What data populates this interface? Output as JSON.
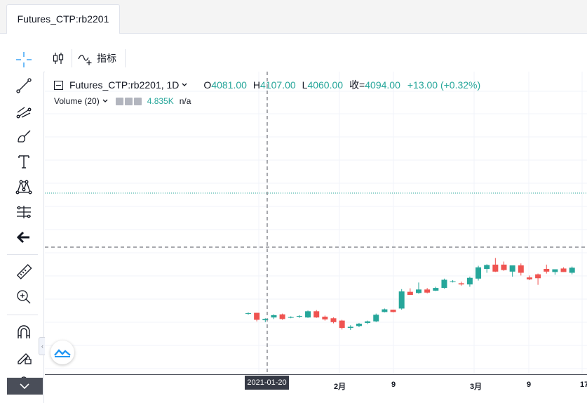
{
  "tab": {
    "title": "Futures_CTP:rb2201"
  },
  "topbar": {
    "indicators_label": "指标"
  },
  "legend": {
    "symbol": "Futures_CTP:rb2201",
    "interval": "1D",
    "open_prefix": "O",
    "open": "4081.00",
    "high_prefix": "H",
    "high": "4107.00",
    "low_prefix": "L",
    "low": "4060.00",
    "close_prefix": "收=",
    "close": "4094.00",
    "change": "+13.00 (+0.32%)"
  },
  "volume": {
    "label": "Volume (20)",
    "value": "4.835K",
    "na": "n/a"
  },
  "xaxis": {
    "crosshair_date": "2021-01-20",
    "labels": [
      "2月",
      "9",
      "3月",
      "9",
      "17"
    ]
  },
  "colors": {
    "up": "#26a69a",
    "down": "#ef5350",
    "crosshair": "#50535e",
    "price_line": "#26a69a"
  },
  "chart_data": {
    "type": "candlestick",
    "price_ylim": [
      3980,
      4260
    ],
    "candles": [
      {
        "o": 4080,
        "h": 4083,
        "l": 4077,
        "c": 4081
      },
      {
        "o": 4082,
        "h": 4082,
        "l": 4060,
        "c": 4064
      },
      {
        "o": 4063,
        "h": 4068,
        "l": 4058,
        "c": 4066
      },
      {
        "o": 4070,
        "h": 4078,
        "l": 4066,
        "c": 4076
      },
      {
        "o": 4078,
        "h": 4080,
        "l": 4064,
        "c": 4066
      },
      {
        "o": 4070,
        "h": 4073,
        "l": 4068,
        "c": 4071
      },
      {
        "o": 4072,
        "h": 4076,
        "l": 4069,
        "c": 4074
      },
      {
        "o": 4070,
        "h": 4088,
        "l": 4069,
        "c": 4086
      },
      {
        "o": 4086,
        "h": 4089,
        "l": 4069,
        "c": 4070
      },
      {
        "o": 4072,
        "h": 4075,
        "l": 4062,
        "c": 4065
      },
      {
        "o": 4068,
        "h": 4070,
        "l": 4055,
        "c": 4058
      },
      {
        "o": 4062,
        "h": 4064,
        "l": 4039,
        "c": 4043
      },
      {
        "o": 4043,
        "h": 4050,
        "l": 4038,
        "c": 4046
      },
      {
        "o": 4048,
        "h": 4056,
        "l": 4045,
        "c": 4054
      },
      {
        "o": 4056,
        "h": 4062,
        "l": 4053,
        "c": 4060
      },
      {
        "o": 4060,
        "h": 4080,
        "l": 4058,
        "c": 4077
      },
      {
        "o": 4084,
        "h": 4093,
        "l": 4083,
        "c": 4091
      },
      {
        "o": 4090,
        "h": 4090,
        "l": 4083,
        "c": 4084
      },
      {
        "o": 4093,
        "h": 4143,
        "l": 4090,
        "c": 4137
      },
      {
        "o": 4136,
        "h": 4145,
        "l": 4128,
        "c": 4128
      },
      {
        "o": 4133,
        "h": 4160,
        "l": 4131,
        "c": 4142
      },
      {
        "o": 4142,
        "h": 4146,
        "l": 4132,
        "c": 4134
      },
      {
        "o": 4139,
        "h": 4149,
        "l": 4138,
        "c": 4146
      },
      {
        "o": 4146,
        "h": 4170,
        "l": 4144,
        "c": 4167
      },
      {
        "o": 4162,
        "h": 4166,
        "l": 4160,
        "c": 4163
      },
      {
        "o": 4158,
        "h": 4162,
        "l": 4152,
        "c": 4155
      },
      {
        "o": 4155,
        "h": 4175,
        "l": 4149,
        "c": 4172
      },
      {
        "o": 4170,
        "h": 4203,
        "l": 4165,
        "c": 4199
      },
      {
        "o": 4195,
        "h": 4207,
        "l": 4185,
        "c": 4205
      },
      {
        "o": 4206,
        "h": 4223,
        "l": 4187,
        "c": 4188
      },
      {
        "o": 4206,
        "h": 4214,
        "l": 4190,
        "c": 4192
      },
      {
        "o": 4188,
        "h": 4204,
        "l": 4175,
        "c": 4204
      },
      {
        "o": 4204,
        "h": 4209,
        "l": 4178,
        "c": 4185
      },
      {
        "o": 4173,
        "h": 4178,
        "l": 4166,
        "c": 4168
      },
      {
        "o": 4181,
        "h": 4183,
        "l": 4154,
        "c": 4171
      },
      {
        "o": 4195,
        "h": 4206,
        "l": 4183,
        "c": 4188
      },
      {
        "o": 4187,
        "h": 4193,
        "l": 4180,
        "c": 4194
      },
      {
        "o": 4196,
        "h": 4199,
        "l": 4187,
        "c": 4187
      },
      {
        "o": 4185,
        "h": 4201,
        "l": 4181,
        "c": 4198
      }
    ]
  }
}
